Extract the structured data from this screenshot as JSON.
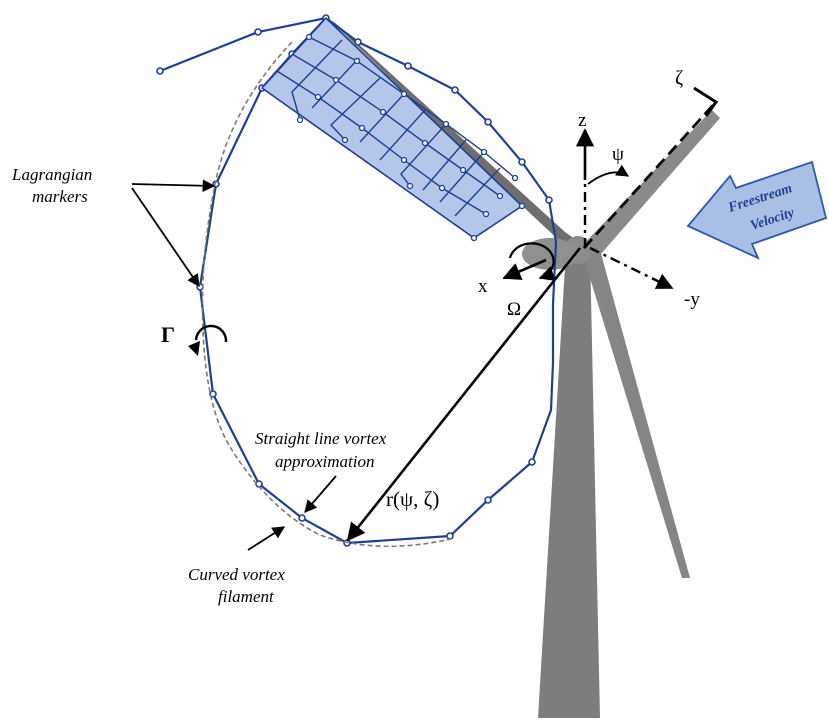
{
  "labels": {
    "lagrangian_line1": "Lagrangian",
    "lagrangian_line2": "markers",
    "gamma": "Γ",
    "straight_line1": "Straight line vortex",
    "straight_line2": "approximation",
    "curved_line1": "Curved vortex",
    "curved_line2": "filament",
    "r_label": "r(ψ, ζ)",
    "axis_z": "z",
    "axis_x": "x",
    "axis_y": "-y",
    "axis_zeta": "ζ",
    "angle_psi": "ψ",
    "omega": "Ω",
    "freestream_line1": "Freestream",
    "freestream_line2": "Velocity"
  },
  "colors": {
    "vortex_line": "#1f3f8f",
    "panel_fill": "#b4c6ea",
    "turbine_gray": "#7d7d7d",
    "freestream_fill": "#a9bfe6",
    "dashed_filament": "#7a7a7a"
  }
}
